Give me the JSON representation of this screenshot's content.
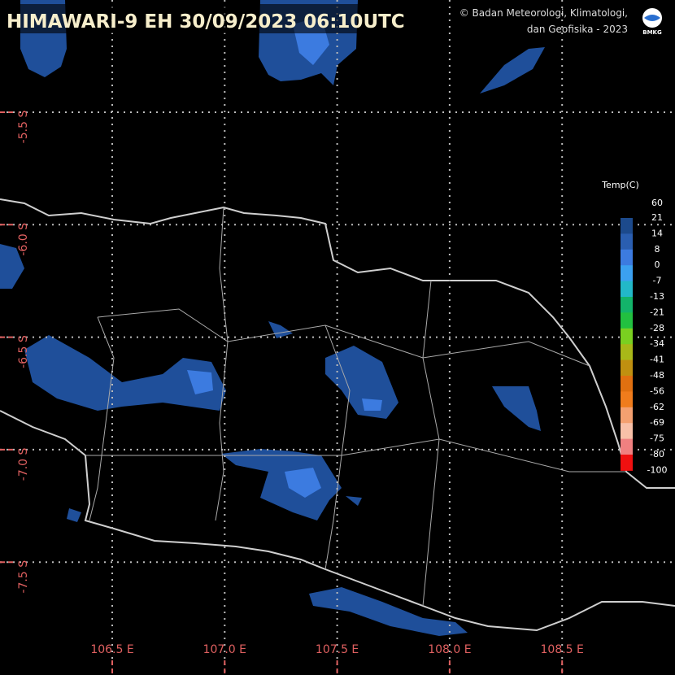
{
  "header": {
    "title": "HIMAWARI-9 EH  30/09/2023  06:10UTC",
    "credit_line1": "© Badan Meteorologi, Klimatologi,",
    "credit_line2": "dan Geofisika -  2023",
    "logo": "BMKG"
  },
  "longitude_labels": [
    "106.5 E",
    "107.0 E",
    "107.5 E",
    "108.0 E",
    "108.5 E"
  ],
  "latitude_labels": [
    "-5.5 S",
    "-6.0 S",
    "-6.5 S",
    "-7.0 S",
    "-7.5 S"
  ],
  "legend": {
    "title": "Temp(C)",
    "labels": [
      "60",
      "21",
      "14",
      "8",
      "0",
      "-7",
      "-13",
      "-21",
      "-28",
      "-34",
      "-41",
      "-48",
      "-56",
      "-62",
      "-69",
      "-75",
      "-80",
      "-100"
    ],
    "colors": [
      "#1c4a8c",
      "#2a5eb0",
      "#3c7be0",
      "#3ba0f0",
      "#22b8c8",
      "#13b46a",
      "#22c040",
      "#7ad020",
      "#a8b818",
      "#c09010",
      "#e07010",
      "#f07c1c",
      "#f4a070",
      "#f8c0a8",
      "#f08080",
      "#f01010"
    ]
  }
}
